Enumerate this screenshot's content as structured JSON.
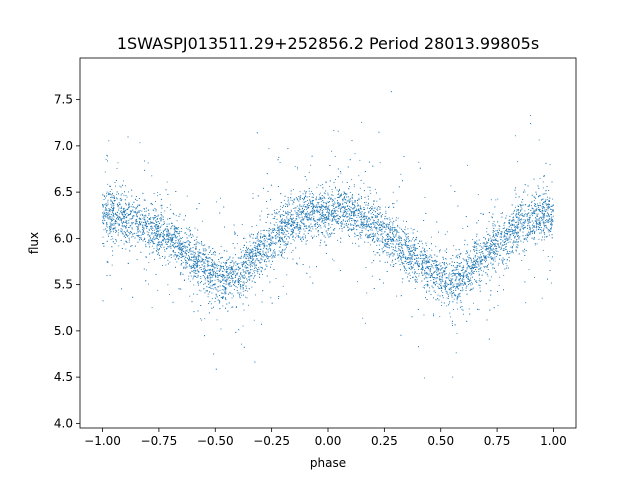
{
  "chart_data": {
    "type": "scatter",
    "title": "1SWASPJ013511.29+252856.2 Period 28013.99805s",
    "xlabel": "phase",
    "ylabel": "flux",
    "xlim": [
      -1.1,
      1.1
    ],
    "ylim": [
      3.95,
      7.95
    ],
    "xticks": [
      -1.0,
      -0.75,
      -0.5,
      -0.25,
      0.0,
      0.25,
      0.5,
      0.75,
      1.0
    ],
    "xtick_labels": [
      "−1.00",
      "−0.75",
      "−0.50",
      "−0.25",
      "0.00",
      "0.25",
      "0.50",
      "0.75",
      "1.00"
    ],
    "yticks": [
      4.0,
      4.5,
      5.0,
      5.5,
      6.0,
      6.5,
      7.0,
      7.5
    ],
    "ytick_labels": [
      "4.0",
      "4.5",
      "5.0",
      "5.5",
      "6.0",
      "6.5",
      "7.0",
      "7.5"
    ],
    "grid": false,
    "marker_color": "#1f77b4",
    "series": [
      {
        "phase_range": [
          -1.0,
          1.0
        ],
        "approx_point_count": 9000,
        "trend_phase": [
          -1.0,
          -0.9,
          -0.8,
          -0.7,
          -0.6,
          -0.5,
          -0.45,
          -0.4,
          -0.3,
          -0.2,
          -0.1,
          0.0,
          0.05,
          0.1,
          0.2,
          0.3,
          0.4,
          0.5,
          0.55,
          0.6,
          0.7,
          0.8,
          0.9,
          1.0
        ],
        "trend_flux": [
          6.27,
          6.22,
          6.15,
          6.0,
          5.8,
          5.6,
          5.55,
          5.62,
          5.85,
          6.1,
          6.25,
          6.3,
          6.31,
          6.28,
          6.15,
          5.98,
          5.75,
          5.58,
          5.53,
          5.6,
          5.82,
          6.05,
          6.2,
          6.28
        ],
        "scatter_flux_std": 0.13,
        "flux_range": [
          4.15,
          7.75
        ]
      }
    ]
  }
}
